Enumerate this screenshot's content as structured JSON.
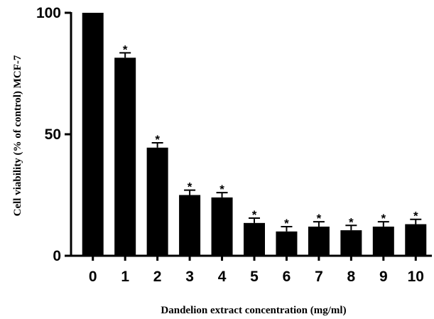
{
  "chart_data": {
    "type": "bar",
    "title": "",
    "xlabel": "Dandelion extract concentration (mg/ml)",
    "ylabel": "Cell viability (% of control) MCF-7",
    "categories": [
      "0",
      "1",
      "2",
      "3",
      "4",
      "5",
      "6",
      "7",
      "8",
      "9",
      "10"
    ],
    "values": [
      100,
      81.5,
      44.5,
      25,
      24,
      13.5,
      10,
      12,
      10.5,
      12,
      13
    ],
    "errors": [
      0,
      2,
      2,
      2,
      2,
      2,
      2,
      2,
      2,
      2,
      2
    ],
    "significance": [
      "",
      "*",
      "*",
      "*",
      "*",
      "*",
      "*",
      "*",
      "*",
      "*",
      "*"
    ],
    "ylim": [
      0,
      100
    ],
    "yticks": [
      "0",
      "50",
      "100"
    ],
    "grid": false,
    "bar_color": "#000000"
  }
}
